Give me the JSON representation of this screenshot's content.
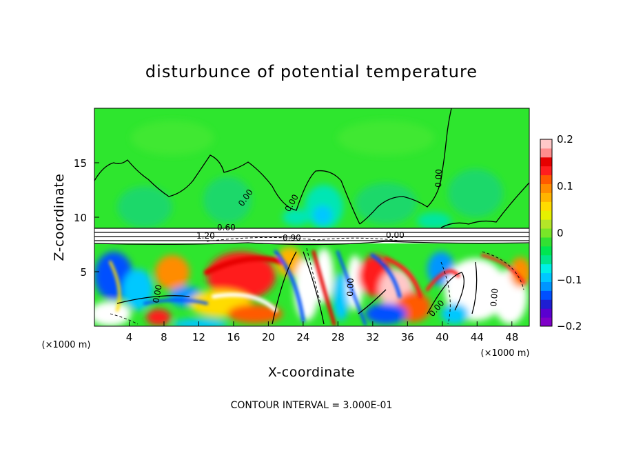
{
  "chart_data": {
    "type": "heatmap",
    "title": "disturbunce of potential temperature",
    "xlabel": "X-coordinate",
    "ylabel": "Z-coordinate",
    "x_unit": "(×1000 m)",
    "xlim": [
      0,
      50
    ],
    "ylim": [
      0,
      20
    ],
    "x_ticks": [
      "4",
      "8",
      "12",
      "16",
      "20",
      "24",
      "28",
      "32",
      "36",
      "40",
      "44",
      "48"
    ],
    "y_ticks": [
      "5",
      "10",
      "15"
    ],
    "colorbar": {
      "range": [
        -0.2,
        0.2
      ],
      "tick_labels": [
        "0.2",
        "0.1",
        "0",
        "−0.1",
        "−0.2"
      ],
      "colors": [
        "#7f00c8",
        "#5a00d0",
        "#1e1ed2",
        "#0050ff",
        "#0096ff",
        "#00c8ff",
        "#00f0e6",
        "#00e68c",
        "#00e650",
        "#32e132",
        "#78e628",
        "#b4e628",
        "#e6f000",
        "#ffdc00",
        "#ffb400",
        "#ff8c00",
        "#ff5a00",
        "#ff1e1e",
        "#e60000",
        "#ff8c8c",
        "#ffc8c8"
      ]
    },
    "contour_labels": [
      "0.00",
      "0.00",
      "0.00",
      "0.00",
      "0.60",
      "1.20",
      "0.00",
      "0.00",
      "0.00",
      "0.00",
      "0.90"
    ],
    "footer": "CONTOUR INTERVAL = 3.000E-01"
  }
}
